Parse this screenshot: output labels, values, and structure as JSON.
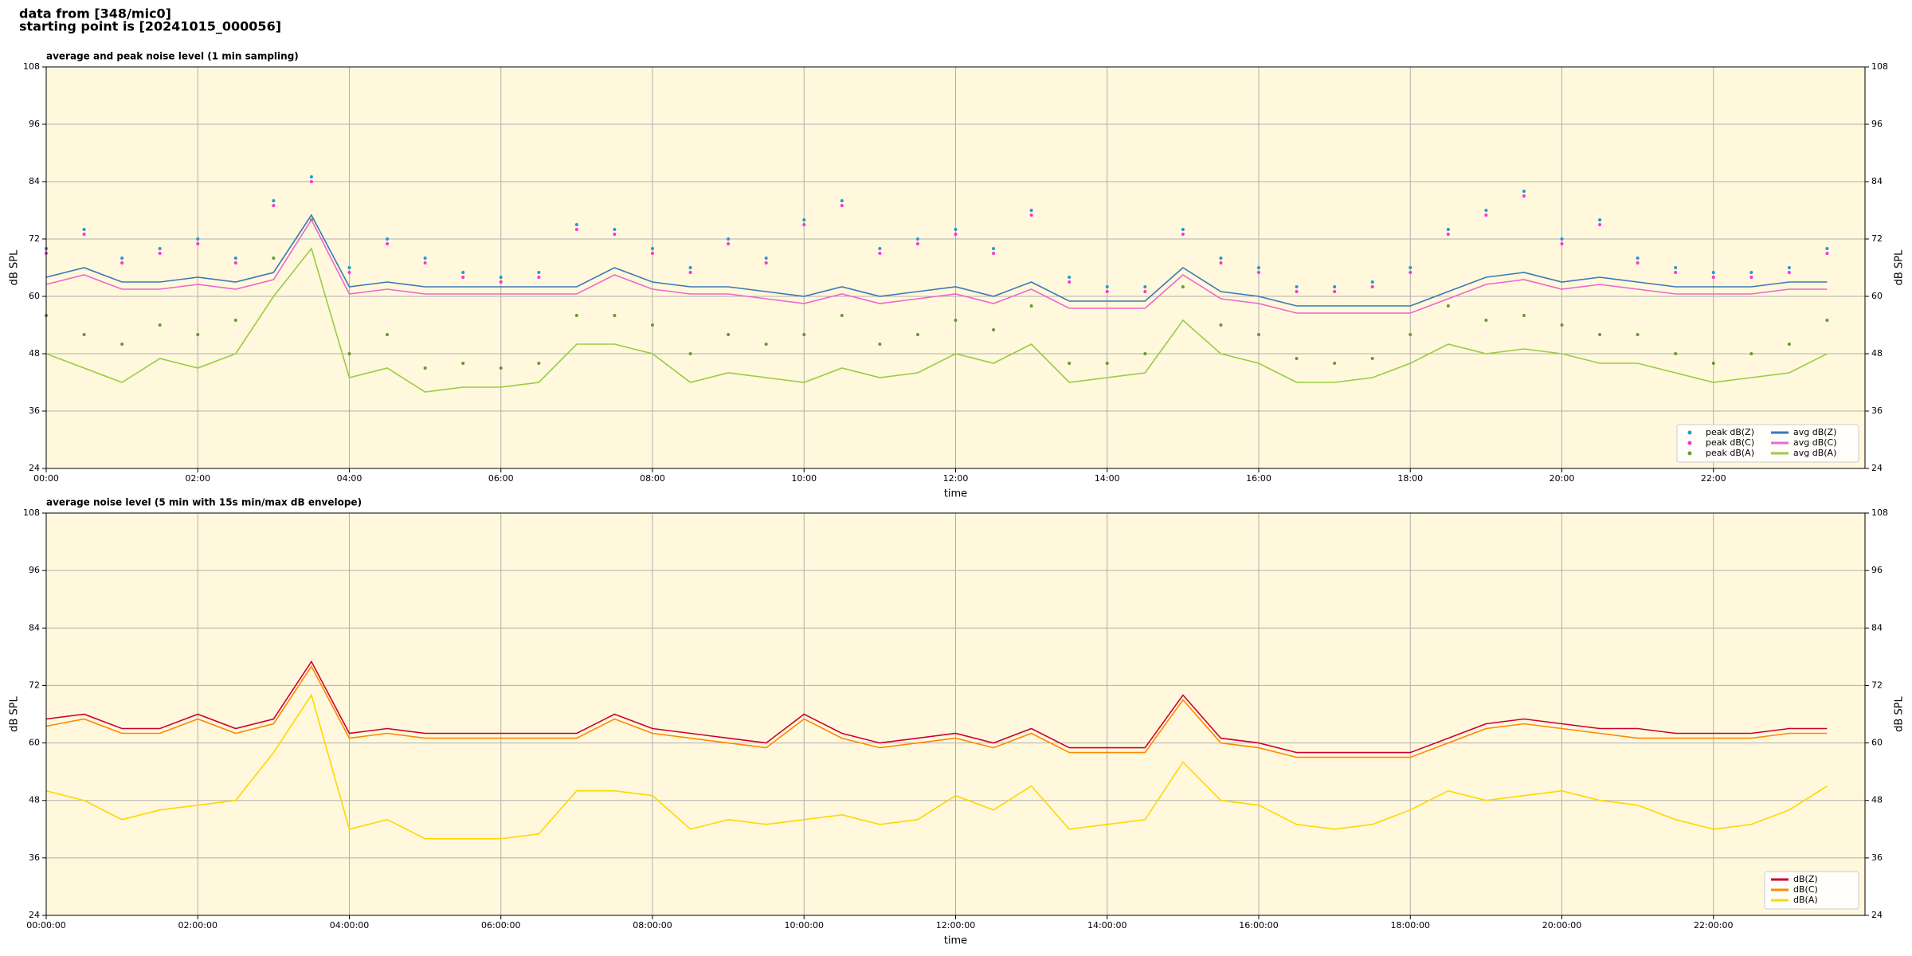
{
  "header": {
    "lines": [
      "data from [348/mic0]",
      "starting point is [20241015_000056]"
    ]
  },
  "chart_data": [
    {
      "type": "line",
      "title": "average and peak noise level (1 min sampling)",
      "xlabel": "time",
      "ylabel": "dB SPL",
      "x": [
        0,
        30,
        60,
        90,
        120,
        150,
        180,
        210,
        240,
        270,
        300,
        330,
        360,
        390,
        420,
        450,
        480,
        510,
        540,
        570,
        600,
        630,
        660,
        690,
        720,
        750,
        780,
        810,
        840,
        870,
        900,
        930,
        960,
        990,
        1020,
        1050,
        1080,
        1110,
        1140,
        1170,
        1200,
        1230,
        1260,
        1290,
        1320,
        1350,
        1380,
        1410
      ],
      "series": [
        {
          "name": "peak dB(Z)",
          "mode": "markers",
          "color": "#1f9bd6",
          "values": [
            70,
            74,
            68,
            70,
            72,
            68,
            80,
            85,
            66,
            72,
            68,
            65,
            64,
            65,
            75,
            74,
            70,
            66,
            72,
            68,
            76,
            80,
            70,
            72,
            74,
            70,
            78,
            64,
            62,
            62,
            74,
            68,
            66,
            62,
            62,
            63,
            66,
            74,
            78,
            82,
            72,
            76,
            68,
            66,
            65,
            65,
            66,
            70
          ]
        },
        {
          "name": "peak dB(C)",
          "mode": "markers",
          "color": "#ff33cc",
          "values": [
            69,
            73,
            67,
            69,
            71,
            67,
            79,
            84,
            65,
            71,
            67,
            64,
            63,
            64,
            74,
            73,
            69,
            65,
            71,
            67,
            75,
            79,
            69,
            71,
            73,
            69,
            77,
            63,
            61,
            61,
            73,
            67,
            65,
            61,
            61,
            62,
            65,
            73,
            77,
            81,
            71,
            75,
            67,
            65,
            64,
            64,
            65,
            69
          ]
        },
        {
          "name": "peak dB(A)",
          "mode": "markers",
          "color": "#669933",
          "values": [
            56,
            52,
            50,
            54,
            52,
            55,
            68,
            76,
            48,
            52,
            45,
            46,
            45,
            46,
            56,
            56,
            54,
            48,
            52,
            50,
            52,
            56,
            50,
            52,
            55,
            53,
            58,
            46,
            46,
            48,
            62,
            54,
            52,
            47,
            46,
            47,
            52,
            58,
            55,
            56,
            54,
            52,
            52,
            48,
            46,
            48,
            50,
            55
          ]
        },
        {
          "name": "avg dB(Z)",
          "mode": "line",
          "color": "#3a78b8",
          "values": [
            64,
            66,
            63,
            63,
            64,
            63,
            65,
            77,
            62,
            63,
            62,
            62,
            62,
            62,
            62,
            66,
            63,
            62,
            62,
            61,
            60,
            62,
            60,
            61,
            62,
            60,
            63,
            59,
            59,
            59,
            66,
            61,
            60,
            58,
            58,
            58,
            58,
            61,
            64,
            65,
            63,
            64,
            63,
            62,
            62,
            62,
            63,
            63
          ]
        },
        {
          "name": "avg dB(C)",
          "mode": "line",
          "color": "#ee66cc",
          "values": [
            62.5,
            64.5,
            61.5,
            61.5,
            62.5,
            61.5,
            63.5,
            76,
            60.5,
            61.5,
            60.5,
            60.5,
            60.5,
            60.5,
            60.5,
            64.5,
            61.5,
            60.5,
            60.5,
            59.5,
            58.5,
            60.5,
            58.5,
            59.5,
            60.5,
            58.5,
            61.5,
            57.5,
            57.5,
            57.5,
            64.5,
            59.5,
            58.5,
            56.5,
            56.5,
            56.5,
            56.5,
            59.5,
            62.5,
            63.5,
            61.5,
            62.5,
            61.5,
            60.5,
            60.5,
            60.5,
            61.5,
            61.5
          ]
        },
        {
          "name": "avg dB(A)",
          "mode": "line",
          "color": "#99cc44",
          "values": [
            48,
            45,
            42,
            47,
            45,
            48,
            60,
            70,
            43,
            45,
            40,
            41,
            41,
            42,
            50,
            50,
            48,
            42,
            44,
            43,
            42,
            45,
            43,
            44,
            48,
            46,
            50,
            42,
            43,
            44,
            55,
            48,
            46,
            42,
            42,
            43,
            46,
            50,
            48,
            49,
            48,
            46,
            46,
            44,
            42,
            43,
            44,
            48
          ]
        }
      ],
      "xlim": [
        0,
        1440
      ],
      "ylim": [
        24,
        108
      ],
      "xticks": [
        {
          "value": 0,
          "label": "00:00"
        },
        {
          "value": 120,
          "label": "02:00"
        },
        {
          "value": 240,
          "label": "04:00"
        },
        {
          "value": 360,
          "label": "06:00"
        },
        {
          "value": 480,
          "label": "08:00"
        },
        {
          "value": 600,
          "label": "10:00"
        },
        {
          "value": 720,
          "label": "12:00"
        },
        {
          "value": 840,
          "label": "14:00"
        },
        {
          "value": 960,
          "label": "16:00"
        },
        {
          "value": 1080,
          "label": "18:00"
        },
        {
          "value": 1200,
          "label": "20:00"
        },
        {
          "value": 1320,
          "label": "22:00"
        }
      ],
      "yticks": [
        24,
        36,
        48,
        60,
        72,
        84,
        96,
        108
      ],
      "grid": true,
      "background": "#fff8dc",
      "legend": "lower right"
    },
    {
      "type": "line",
      "title": "average noise level (5 min with 15s min/max dB envelope)",
      "xlabel": "time",
      "ylabel": "dB SPL",
      "x": [
        0,
        30,
        60,
        90,
        120,
        150,
        180,
        210,
        240,
        270,
        300,
        330,
        360,
        390,
        420,
        450,
        480,
        510,
        540,
        570,
        600,
        630,
        660,
        690,
        720,
        750,
        780,
        810,
        840,
        870,
        900,
        930,
        960,
        990,
        1020,
        1050,
        1080,
        1110,
        1140,
        1170,
        1200,
        1230,
        1260,
        1290,
        1320,
        1350,
        1380,
        1410
      ],
      "series": [
        {
          "name": "dB(Z)",
          "mode": "line",
          "color": "#cc0033",
          "values": [
            65,
            66,
            63,
            63,
            66,
            63,
            65,
            77,
            62,
            63,
            62,
            62,
            62,
            62,
            62,
            66,
            63,
            62,
            61,
            60,
            66,
            62,
            60,
            61,
            62,
            60,
            63,
            59,
            59,
            59,
            70,
            61,
            60,
            58,
            58,
            58,
            58,
            61,
            64,
            65,
            64,
            63,
            63,
            62,
            62,
            62,
            63,
            63
          ]
        },
        {
          "name": "dB(C)",
          "mode": "line",
          "color": "#ff8800",
          "values": [
            63.5,
            65,
            62,
            62,
            65,
            62,
            64,
            76,
            61,
            62,
            61,
            61,
            61,
            61,
            61,
            65,
            62,
            61,
            60,
            59,
            65,
            61,
            59,
            60,
            61,
            59,
            62,
            58,
            58,
            58,
            69,
            60,
            59,
            57,
            57,
            57,
            57,
            60,
            63,
            64,
            63,
            62,
            61,
            61,
            61,
            61,
            62,
            62
          ]
        },
        {
          "name": "dB(A)",
          "mode": "line",
          "color": "#ffd700",
          "values": [
            50,
            48,
            44,
            46,
            47,
            48,
            58,
            70,
            42,
            44,
            40,
            40,
            40,
            41,
            50,
            50,
            49,
            42,
            44,
            43,
            44,
            45,
            43,
            44,
            49,
            46,
            51,
            42,
            43,
            44,
            56,
            48,
            47,
            43,
            42,
            43,
            46,
            50,
            48,
            49,
            50,
            48,
            47,
            44,
            42,
            43,
            46,
            51
          ]
        }
      ],
      "xlim": [
        0,
        1440
      ],
      "ylim": [
        24,
        108
      ],
      "xticks": [
        {
          "value": 0,
          "label": "00:00:00"
        },
        {
          "value": 120,
          "label": "02:00:00"
        },
        {
          "value": 240,
          "label": "04:00:00"
        },
        {
          "value": 360,
          "label": "06:00:00"
        },
        {
          "value": 480,
          "label": "08:00:00"
        },
        {
          "value": 600,
          "label": "10:00:00"
        },
        {
          "value": 720,
          "label": "12:00:00"
        },
        {
          "value": 840,
          "label": "14:00:00"
        },
        {
          "value": 960,
          "label": "16:00:00"
        },
        {
          "value": 1080,
          "label": "18:00:00"
        },
        {
          "value": 1200,
          "label": "20:00:00"
        },
        {
          "value": 1320,
          "label": "22:00:00"
        }
      ],
      "yticks": [
        24,
        36,
        48,
        60,
        72,
        84,
        96,
        108
      ],
      "grid": true,
      "background": "#fff8dc",
      "legend": "lower right"
    }
  ]
}
